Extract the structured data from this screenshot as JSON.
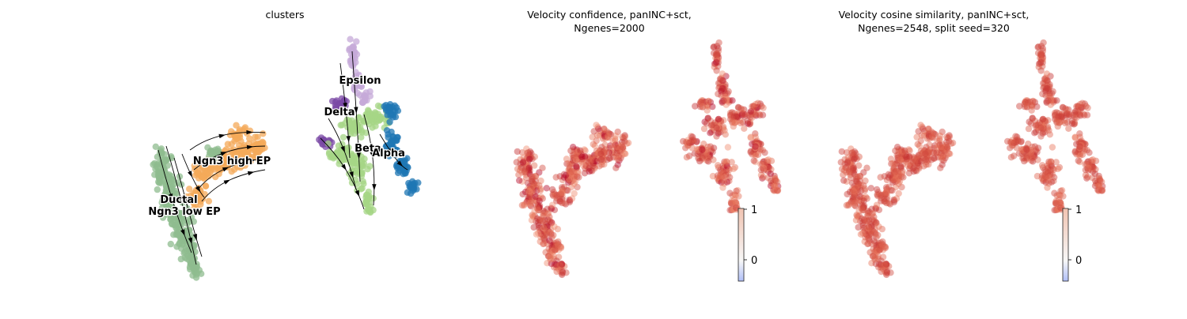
{
  "chart_data": [
    {
      "type": "scatter",
      "title": "clusters",
      "encoding": "categorical clusters with velocity streamlines",
      "clusters": [
        {
          "name": "Ductal",
          "color": "#8fbc8f"
        },
        {
          "name": "Ngn3 low EP",
          "color": "#8fbc8f"
        },
        {
          "name": "Ngn3 high EP",
          "color": "#f4a95a"
        },
        {
          "name": "Epsilon",
          "color": "#c5a9d8"
        },
        {
          "name": "Delta",
          "color": "#7b4aa6"
        },
        {
          "name": "Beta",
          "color": "#a6d685"
        },
        {
          "name": "Alpha",
          "color": "#1f77b4"
        }
      ]
    },
    {
      "type": "scatter",
      "title": "Velocity confidence, panINC+sct,\nNgenes=2000",
      "encoding": "continuous color",
      "colorbar": {
        "ticks": [
          "1",
          "0"
        ],
        "range": [
          -0.4,
          1
        ]
      },
      "colormap": [
        "#3b4cc0",
        "#f7f7f7",
        "#b40426"
      ]
    },
    {
      "type": "scatter",
      "title": "Velocity cosine similarity, panINC+sct,\nNgenes=2548, split seed=320",
      "encoding": "continuous color",
      "colorbar": {
        "ticks": [
          "1",
          "0"
        ],
        "range": [
          -0.4,
          1
        ]
      },
      "colormap": [
        "#3b4cc0",
        "#f7f7f7",
        "#b40426"
      ]
    }
  ],
  "labels": {
    "ductal": "Ductal",
    "ngn3_low": "Ngn3 low EP",
    "ngn3_high": "Ngn3 high EP",
    "epsilon": "Epsilon",
    "delta": "Delta",
    "beta": "Beta",
    "alpha": "Alpha"
  }
}
